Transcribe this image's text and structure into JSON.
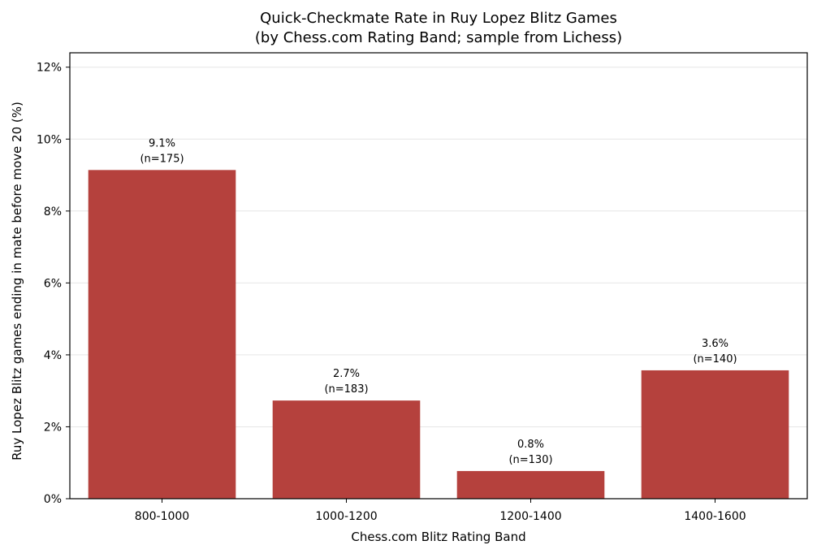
{
  "chart_data": {
    "type": "bar",
    "title_line1": "Quick-Checkmate Rate in Ruy Lopez Blitz Games",
    "title_line2": "(by Chess.com Rating Band; sample from Lichess)",
    "xlabel": "Chess.com Blitz Rating Band",
    "ylabel": "Ruy Lopez Blitz games ending in mate before move 20 (%)",
    "categories": [
      "800-1000",
      "1000-1200",
      "1200-1400",
      "1400-1600"
    ],
    "values": [
      9.14,
      2.73,
      0.77,
      3.57
    ],
    "value_labels": [
      "9.1%",
      "2.7%",
      "0.8%",
      "3.6%"
    ],
    "n_labels": [
      "(n=175)",
      "(n=183)",
      "(n=130)",
      "(n=140)"
    ],
    "ylim": [
      0,
      12.4
    ],
    "yticks": [
      0,
      2,
      4,
      6,
      8,
      10,
      12
    ],
    "ytick_labels": [
      "0%",
      "2%",
      "4%",
      "6%",
      "8%",
      "10%",
      "12%"
    ],
    "grid": true,
    "colors": {
      "bar": "#b5413d",
      "grid": "#e6e6e6",
      "axis": "#000000"
    }
  }
}
